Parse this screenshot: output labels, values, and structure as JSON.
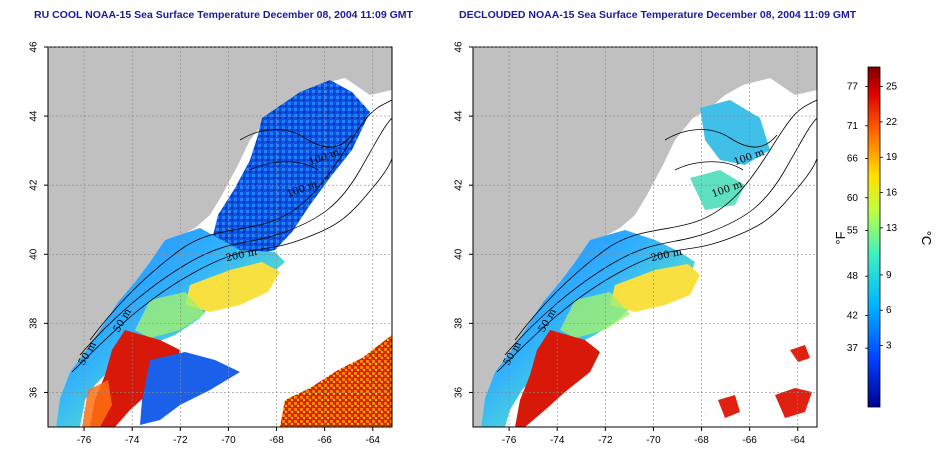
{
  "panels": [
    {
      "title": "RU COOL NOAA-15 Sea Surface Temperature December 08, 2004 11:09 GMT",
      "contour_labels": [
        "100 m",
        "100 m",
        "200 m",
        "50 m",
        "50 m"
      ]
    },
    {
      "title": "DECLOUDED NOAA-15 Sea Surface Temperature December 08, 2004 11:09 GMT",
      "contour_labels": [
        "100 m",
        "100 m",
        "200 m",
        "50 m",
        "50 m"
      ]
    }
  ],
  "axes": {
    "lon_ticks": [
      "-76",
      "-74",
      "-72",
      "-70",
      "-68",
      "-66",
      "-64"
    ],
    "lat_ticks": [
      "46",
      "44",
      "42",
      "40",
      "38",
      "36"
    ],
    "lon_range": [
      -77.5,
      -63.2
    ],
    "lat_range": [
      35,
      46
    ]
  },
  "colorbar": {
    "fahrenheit_label": "°F",
    "celsius_label": "°C",
    "fahrenheit_ticks": [
      "77",
      "71",
      "66",
      "60",
      "55",
      "48",
      "42",
      "37"
    ],
    "celsius_ticks": [
      "25",
      "22",
      "19",
      "16",
      "13",
      "9",
      "6",
      "3"
    ],
    "colors": [
      "#00008f",
      "#0050ff",
      "#00c8ff",
      "#60ffa0",
      "#ffff00",
      "#ff8000",
      "#e00000",
      "#800000"
    ]
  },
  "colors": {
    "land": "#c0c0c0",
    "no_data": "#ffffff",
    "title": "#1a1a9a"
  }
}
